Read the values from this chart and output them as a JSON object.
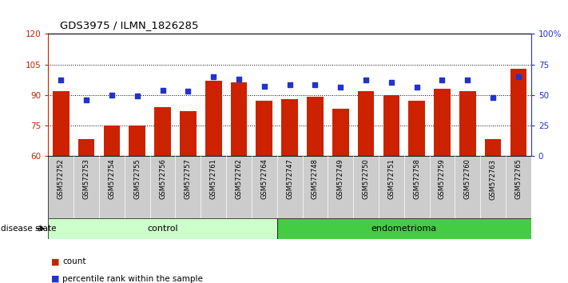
{
  "title": "GDS3975 / ILMN_1826285",
  "samples": [
    "GSM572752",
    "GSM572753",
    "GSM572754",
    "GSM572755",
    "GSM572756",
    "GSM572757",
    "GSM572761",
    "GSM572762",
    "GSM572764",
    "GSM572747",
    "GSM572748",
    "GSM572749",
    "GSM572750",
    "GSM572751",
    "GSM572758",
    "GSM572759",
    "GSM572760",
    "GSM572763",
    "GSM572765"
  ],
  "bar_values": [
    92,
    68,
    75,
    75,
    84,
    82,
    97,
    96,
    87,
    88,
    89,
    83,
    92,
    90,
    87,
    93,
    92,
    68,
    103
  ],
  "dot_values_pct": [
    62,
    46,
    50,
    49,
    54,
    53,
    65,
    63,
    57,
    58,
    58,
    56,
    62,
    60,
    56,
    62,
    62,
    48,
    65
  ],
  "control_count": 9,
  "endometrioma_count": 10,
  "ylim_left": [
    60,
    120
  ],
  "ylim_right": [
    0,
    100
  ],
  "yticks_left": [
    60,
    75,
    90,
    105,
    120
  ],
  "yticks_right": [
    0,
    25,
    50,
    75,
    100
  ],
  "ytick_labels_right": [
    "0",
    "25",
    "50",
    "75",
    "100%"
  ],
  "bar_color": "#cc2200",
  "dot_color": "#2233cc",
  "control_label": "control",
  "endometrioma_label": "endometrioma",
  "disease_state_label": "disease state",
  "legend_count": "count",
  "legend_pct": "percentile rank within the sample",
  "control_bg": "#ccffcc",
  "endometrioma_bg": "#44cc44",
  "sample_bg": "#cccccc"
}
